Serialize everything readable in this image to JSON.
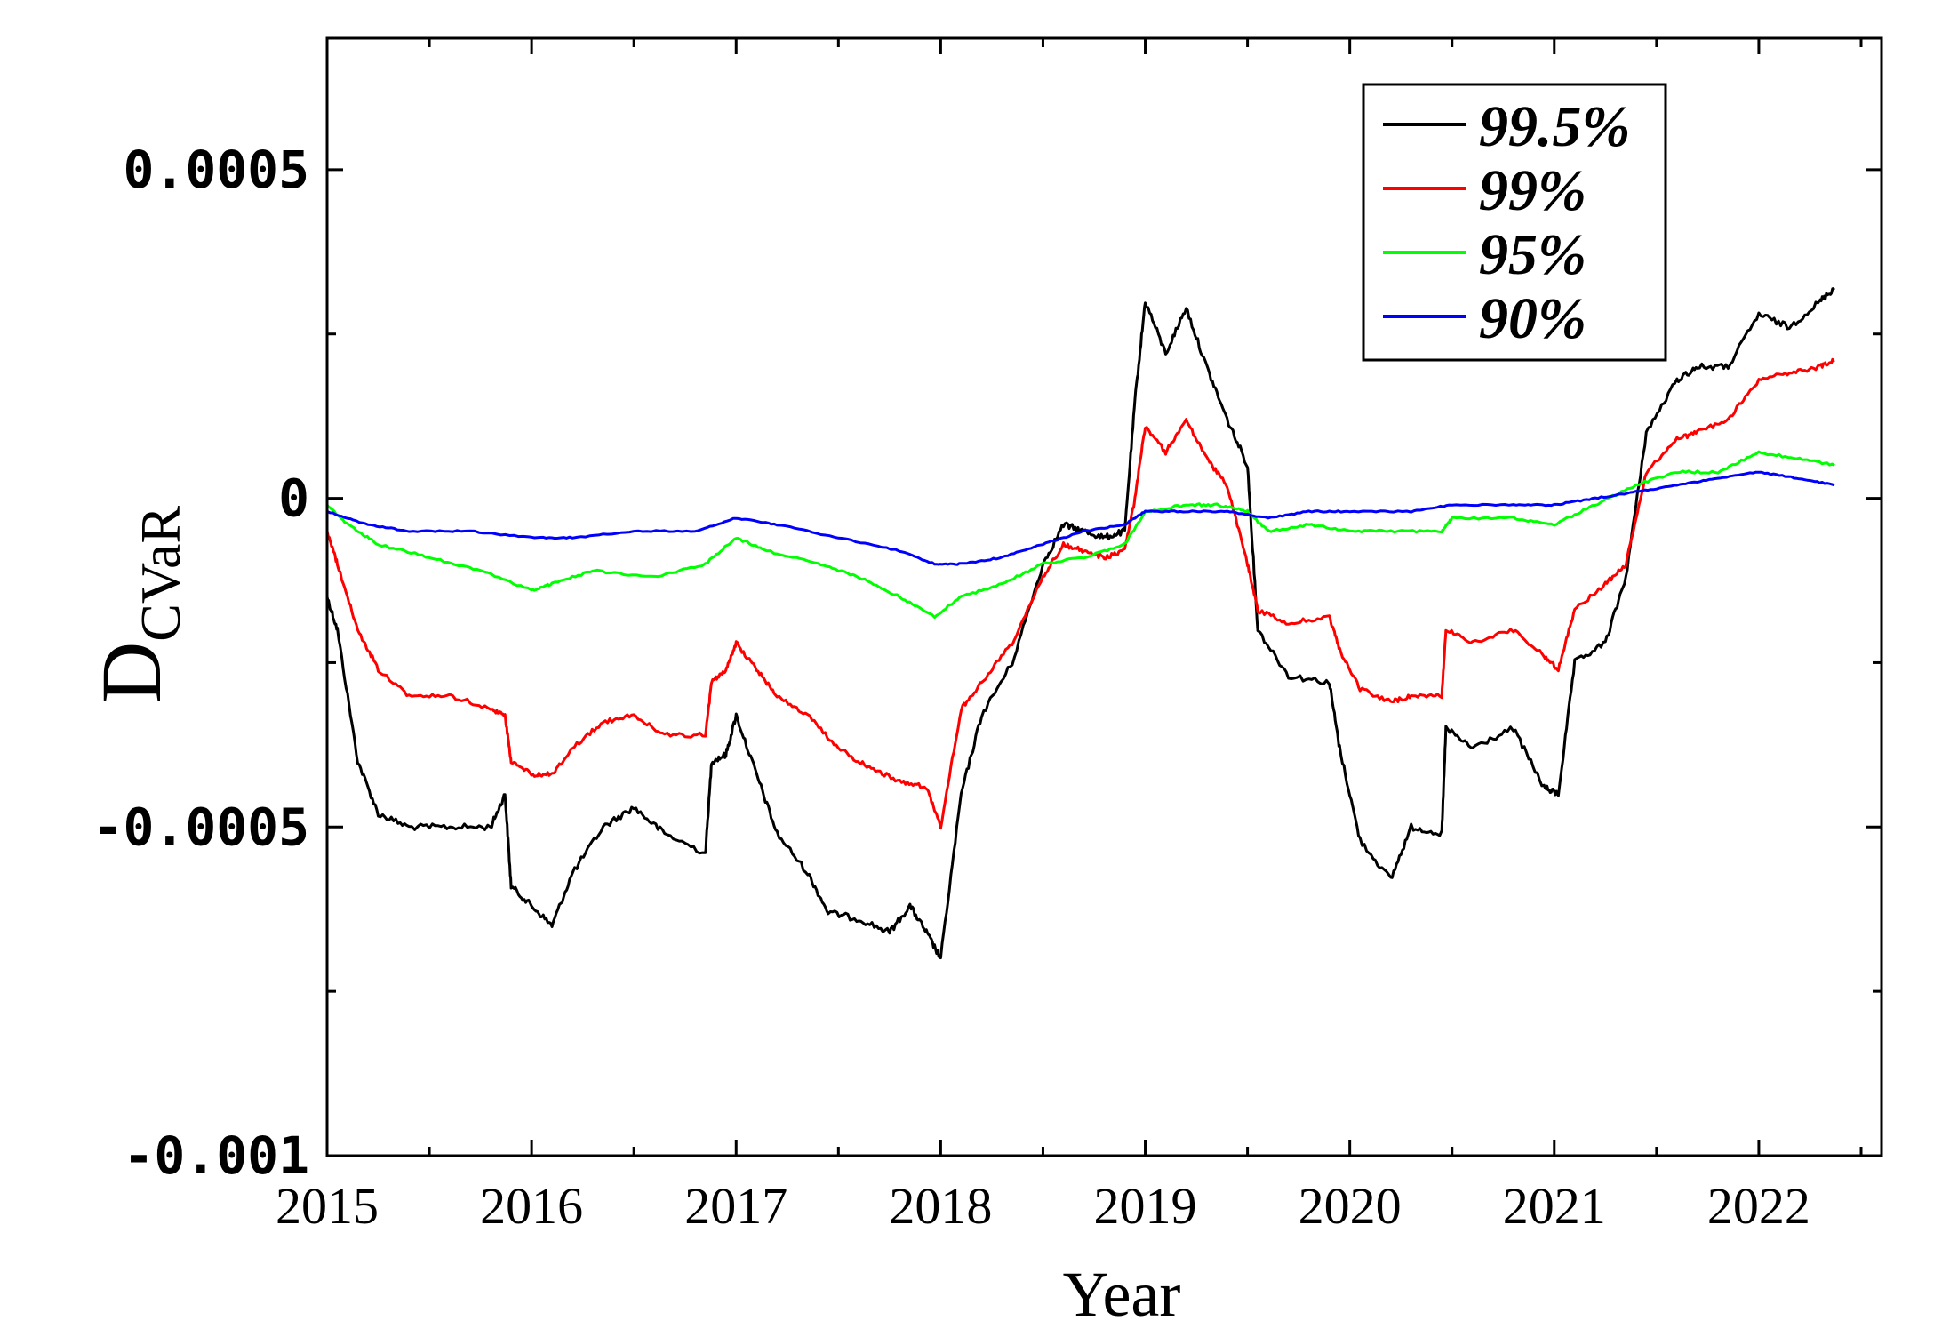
{
  "chart_data": {
    "type": "line",
    "xlabel": "Year",
    "ylabel": "D",
    "ylabel_subscript": "CVaR",
    "xlim": [
      2015,
      2022.6
    ],
    "ylim": [
      -0.001,
      0.0007
    ],
    "x_ticks": [
      2015,
      2016,
      2017,
      2018,
      2019,
      2020,
      2021,
      2022
    ],
    "x_tick_labels": [
      "2015",
      "2016",
      "2017",
      "2018",
      "2019",
      "2020",
      "2021",
      "2022"
    ],
    "y_ticks": [
      -0.001,
      -0.0005,
      0,
      0.0005
    ],
    "y_tick_labels": [
      "-0.001",
      "-0.0005",
      "0",
      "0.0005"
    ],
    "grid": false,
    "legend_position": "top-right",
    "series": [
      {
        "name": "99.5%",
        "color": "#000000",
        "x": [
          2015.0,
          2015.05,
          2015.15,
          2015.25,
          2015.4,
          2015.6,
          2015.8,
          2015.87,
          2015.9,
          2016.0,
          2016.1,
          2016.2,
          2016.35,
          2016.5,
          2016.65,
          2016.85,
          2016.88,
          2016.95,
          2017.0,
          2017.1,
          2017.2,
          2017.35,
          2017.45,
          2017.6,
          2017.75,
          2017.85,
          2017.93,
          2018.0,
          2018.1,
          2018.2,
          2018.35,
          2018.5,
          2018.6,
          2018.7,
          2018.8,
          2018.9,
          2018.95,
          2019.0,
          2019.1,
          2019.2,
          2019.3,
          2019.4,
          2019.5,
          2019.55,
          2019.7,
          2019.9,
          2019.95,
          2020.05,
          2020.2,
          2020.3,
          2020.45,
          2020.47,
          2020.6,
          2020.8,
          2020.95,
          2021.02,
          2021.1,
          2021.25,
          2021.35,
          2021.45,
          2021.6,
          2021.7,
          2021.85,
          2022.0,
          2022.15,
          2022.3,
          2022.37
        ],
        "y": [
          -0.00015,
          -0.0002,
          -0.0004,
          -0.00048,
          -0.0005,
          -0.0005,
          -0.0005,
          -0.00045,
          -0.00059,
          -0.00062,
          -0.00065,
          -0.00057,
          -0.0005,
          -0.00047,
          -0.00051,
          -0.00054,
          -0.0004,
          -0.00039,
          -0.00033,
          -0.00042,
          -0.00051,
          -0.00057,
          -0.00063,
          -0.00064,
          -0.00066,
          -0.00062,
          -0.00066,
          -0.0007,
          -0.00045,
          -0.00033,
          -0.00025,
          -0.0001,
          -4e-05,
          -5e-05,
          -6e-05,
          -5e-05,
          0.00015,
          0.0003,
          0.00022,
          0.00029,
          0.0002,
          0.00012,
          5e-05,
          -0.0002,
          -0.00027,
          -0.00028,
          -0.00038,
          -0.00052,
          -0.00058,
          -0.0005,
          -0.00051,
          -0.00035,
          -0.00038,
          -0.00035,
          -0.00044,
          -0.00045,
          -0.00025,
          -0.00022,
          -0.00012,
          0.0001,
          0.00018,
          0.0002,
          0.0002,
          0.00028,
          0.00026,
          0.0003,
          0.00032
        ]
      },
      {
        "name": "99%",
        "color": "#ff0000",
        "x": [
          2015.0,
          2015.05,
          2015.15,
          2015.25,
          2015.4,
          2015.6,
          2015.8,
          2015.87,
          2015.9,
          2016.0,
          2016.1,
          2016.2,
          2016.35,
          2016.5,
          2016.65,
          2016.85,
          2016.88,
          2016.95,
          2017.0,
          2017.1,
          2017.2,
          2017.35,
          2017.5,
          2017.65,
          2017.8,
          2017.93,
          2018.0,
          2018.1,
          2018.2,
          2018.35,
          2018.5,
          2018.6,
          2018.7,
          2018.8,
          2018.9,
          2018.95,
          2019.0,
          2019.1,
          2019.2,
          2019.3,
          2019.4,
          2019.5,
          2019.55,
          2019.7,
          2019.9,
          2019.95,
          2020.05,
          2020.2,
          2020.3,
          2020.45,
          2020.47,
          2020.6,
          2020.8,
          2020.95,
          2021.02,
          2021.1,
          2021.25,
          2021.35,
          2021.45,
          2021.6,
          2021.7,
          2021.85,
          2022.0,
          2022.15,
          2022.3,
          2022.37
        ],
        "y": [
          -5e-05,
          -0.0001,
          -0.0002,
          -0.00026,
          -0.0003,
          -0.0003,
          -0.00032,
          -0.00033,
          -0.0004,
          -0.00042,
          -0.00042,
          -0.00038,
          -0.00034,
          -0.00033,
          -0.00036,
          -0.00036,
          -0.00028,
          -0.00026,
          -0.00022,
          -0.00026,
          -0.0003,
          -0.00033,
          -0.00038,
          -0.00041,
          -0.00043,
          -0.00044,
          -0.0005,
          -0.00032,
          -0.00028,
          -0.00022,
          -0.00012,
          -7e-05,
          -8e-05,
          -9e-05,
          -8e-05,
          0.0,
          0.00011,
          7e-05,
          0.00012,
          6e-05,
          2e-05,
          -0.0001,
          -0.00017,
          -0.00019,
          -0.00018,
          -0.00023,
          -0.00029,
          -0.00031,
          -0.0003,
          -0.0003,
          -0.0002,
          -0.00022,
          -0.0002,
          -0.00024,
          -0.00026,
          -0.00017,
          -0.00013,
          -0.0001,
          4e-05,
          9e-05,
          0.0001,
          0.00012,
          0.00018,
          0.00019,
          0.0002,
          0.00021
        ]
      },
      {
        "name": "95%",
        "color": "#00ff00",
        "x": [
          2015.0,
          2015.1,
          2015.25,
          2015.5,
          2015.75,
          2016.0,
          2016.1,
          2016.3,
          2016.6,
          2016.85,
          2017.0,
          2017.15,
          2017.4,
          2017.6,
          2017.8,
          2017.97,
          2018.1,
          2018.3,
          2018.5,
          2018.7,
          2018.9,
          2019.0,
          2019.2,
          2019.35,
          2019.5,
          2019.6,
          2019.8,
          2020.0,
          2020.2,
          2020.45,
          2020.5,
          2020.8,
          2021.0,
          2021.2,
          2021.4,
          2021.6,
          2021.8,
          2022.0,
          2022.2,
          2022.37
        ],
        "y": [
          -1e-05,
          -4e-05,
          -7e-05,
          -9e-05,
          -0.00011,
          -0.00014,
          -0.00013,
          -0.00011,
          -0.00012,
          -0.0001,
          -6e-05,
          -8e-05,
          -0.0001,
          -0.00012,
          -0.00015,
          -0.00018,
          -0.00015,
          -0.00013,
          -0.0001,
          -9e-05,
          -7e-05,
          -2e-05,
          -1e-05,
          -1e-05,
          -2e-05,
          -5e-05,
          -4e-05,
          -5e-05,
          -5e-05,
          -5e-05,
          -3e-05,
          -3e-05,
          -4e-05,
          -1e-05,
          2e-05,
          4e-05,
          4e-05,
          7e-05,
          6e-05,
          5e-05
        ]
      },
      {
        "name": "90%",
        "color": "#0000ff",
        "x": [
          2015.0,
          2015.2,
          2015.4,
          2015.7,
          2016.0,
          2016.2,
          2016.5,
          2016.8,
          2017.0,
          2017.2,
          2017.5,
          2017.8,
          2017.97,
          2018.1,
          2018.3,
          2018.5,
          2018.7,
          2018.9,
          2019.0,
          2019.2,
          2019.4,
          2019.6,
          2019.8,
          2020.0,
          2020.3,
          2020.5,
          2020.8,
          2021.0,
          2021.2,
          2021.4,
          2021.6,
          2021.8,
          2022.0,
          2022.2,
          2022.37
        ],
        "y": [
          -2e-05,
          -4e-05,
          -5e-05,
          -5e-05,
          -6e-05,
          -6e-05,
          -5e-05,
          -5e-05,
          -3e-05,
          -4e-05,
          -6e-05,
          -8e-05,
          -0.0001,
          -0.0001,
          -9e-05,
          -7e-05,
          -5e-05,
          -4e-05,
          -2e-05,
          -2e-05,
          -2e-05,
          -3e-05,
          -2e-05,
          -2e-05,
          -2e-05,
          -1e-05,
          -1e-05,
          -1e-05,
          0.0,
          1e-05,
          2e-05,
          3e-05,
          4e-05,
          3e-05,
          2e-05
        ]
      }
    ]
  }
}
